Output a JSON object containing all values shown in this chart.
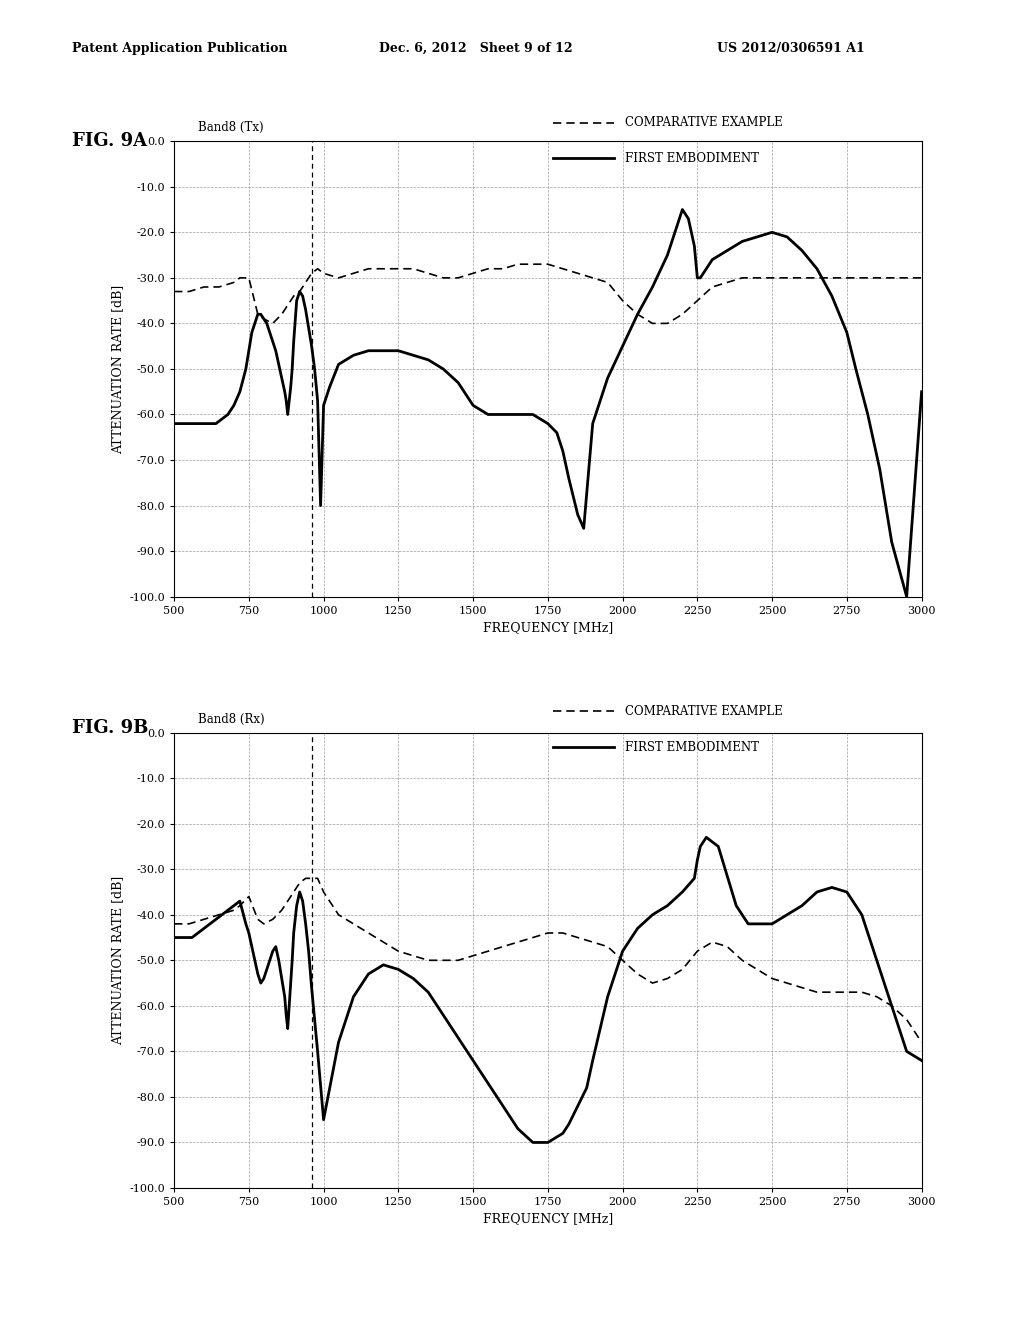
{
  "header_left": "Patent Application Publication",
  "header_mid": "Dec. 6, 2012   Sheet 9 of 12",
  "header_right": "US 2012/0306591 A1",
  "fig_labels": [
    "FIG. 9A",
    "FIG. 9B"
  ],
  "band_labels": [
    "Band8 (Tx)",
    "Band8 (Rx)"
  ],
  "legend_labels": [
    "COMPARATIVE EXAMPLE",
    "FIRST EMBODIMENT"
  ],
  "xlabel": "FREQUENCY [MHz]",
  "ylabel": "ATTENUATION RATE [dB]",
  "xlim": [
    500,
    3000
  ],
  "ylim": [
    -100,
    0
  ],
  "xticks": [
    500,
    750,
    1000,
    1250,
    1500,
    1750,
    2000,
    2250,
    2500,
    2750,
    3000
  ],
  "yticks": [
    0,
    -10,
    -20,
    -30,
    -40,
    -50,
    -60,
    -70,
    -80,
    -90,
    -100
  ],
  "ytick_labels": [
    "0.0",
    "-10.0",
    "-20.0",
    "-30.0",
    "-40.0",
    "-50.0",
    "-60.0",
    "-70.0",
    "-80.0",
    "-90.0",
    "-100.0"
  ],
  "background_color": "#ffffff",
  "line_color_solid": "#000000",
  "line_color_dashed": "#000000",
  "9A_comp_x": [
    500,
    550,
    600,
    650,
    700,
    720,
    750,
    780,
    800,
    830,
    860,
    880,
    900,
    920,
    940,
    960,
    980,
    1000,
    1050,
    1100,
    1150,
    1200,
    1250,
    1300,
    1350,
    1400,
    1450,
    1500,
    1550,
    1600,
    1650,
    1700,
    1750,
    1800,
    1850,
    1900,
    1950,
    2000,
    2050,
    2100,
    2150,
    2200,
    2250,
    2300,
    2350,
    2400,
    2450,
    2500,
    2550,
    2600,
    2650,
    2700,
    2750,
    2800,
    2850,
    2900,
    2950,
    3000
  ],
  "9A_comp_y": [
    -33,
    -33,
    -32,
    -32,
    -31,
    -30,
    -30,
    -38,
    -39,
    -40,
    -38,
    -36,
    -34,
    -33,
    -31,
    -29,
    -28,
    -29,
    -30,
    -29,
    -28,
    -28,
    -28,
    -28,
    -29,
    -30,
    -30,
    -29,
    -28,
    -28,
    -27,
    -27,
    -27,
    -28,
    -29,
    -30,
    -31,
    -35,
    -38,
    -40,
    -40,
    -38,
    -35,
    -32,
    -31,
    -30,
    -30,
    -30,
    -30,
    -30,
    -30,
    -30,
    -30,
    -30,
    -30,
    -30,
    -30,
    -30
  ],
  "9A_first_x": [
    500,
    520,
    540,
    560,
    580,
    600,
    620,
    640,
    660,
    680,
    700,
    720,
    740,
    750,
    760,
    770,
    780,
    790,
    800,
    810,
    820,
    830,
    840,
    850,
    860,
    870,
    875,
    880,
    885,
    890,
    895,
    900,
    910,
    920,
    930,
    940,
    950,
    960,
    970,
    980,
    990,
    1000,
    1020,
    1050,
    1100,
    1150,
    1200,
    1250,
    1300,
    1350,
    1400,
    1450,
    1500,
    1550,
    1600,
    1650,
    1700,
    1750,
    1780,
    1800,
    1820,
    1850,
    1870,
    1900,
    1950,
    2000,
    2050,
    2100,
    2150,
    2200,
    2220,
    2240,
    2250,
    2260,
    2280,
    2300,
    2350,
    2400,
    2450,
    2500,
    2550,
    2600,
    2650,
    2700,
    2750,
    2780,
    2820,
    2860,
    2900,
    2950,
    3000
  ],
  "9A_first_y": [
    -62,
    -62,
    -62,
    -62,
    -62,
    -62,
    -62,
    -62,
    -61,
    -60,
    -58,
    -55,
    -50,
    -46,
    -42,
    -40,
    -38,
    -38,
    -39,
    -40,
    -42,
    -44,
    -46,
    -49,
    -52,
    -55,
    -57,
    -60,
    -57,
    -54,
    -50,
    -44,
    -35,
    -33,
    -34,
    -37,
    -41,
    -45,
    -50,
    -57,
    -80,
    -58,
    -54,
    -49,
    -47,
    -46,
    -46,
    -46,
    -47,
    -48,
    -50,
    -53,
    -58,
    -60,
    -60,
    -60,
    -60,
    -62,
    -64,
    -68,
    -74,
    -82,
    -85,
    -62,
    -52,
    -45,
    -38,
    -32,
    -25,
    -15,
    -17,
    -23,
    -30,
    -30,
    -28,
    -26,
    -24,
    -22,
    -21,
    -20,
    -21,
    -24,
    -28,
    -34,
    -42,
    -50,
    -60,
    -72,
    -88,
    -100,
    -55
  ],
  "9B_comp_x": [
    500,
    550,
    600,
    650,
    700,
    720,
    750,
    780,
    800,
    830,
    860,
    880,
    900,
    920,
    940,
    960,
    980,
    1000,
    1050,
    1100,
    1150,
    1200,
    1250,
    1300,
    1350,
    1400,
    1450,
    1500,
    1550,
    1600,
    1650,
    1700,
    1750,
    1800,
    1850,
    1900,
    1950,
    2000,
    2050,
    2100,
    2150,
    2200,
    2250,
    2300,
    2350,
    2400,
    2450,
    2500,
    2550,
    2600,
    2650,
    2700,
    2750,
    2800,
    2850,
    2900,
    2950,
    3000
  ],
  "9B_comp_y": [
    -42,
    -42,
    -41,
    -40,
    -39,
    -38,
    -36,
    -41,
    -42,
    -41,
    -39,
    -37,
    -35,
    -33,
    -32,
    -32,
    -32,
    -35,
    -40,
    -42,
    -44,
    -46,
    -48,
    -49,
    -50,
    -50,
    -50,
    -49,
    -48,
    -47,
    -46,
    -45,
    -44,
    -44,
    -45,
    -46,
    -47,
    -50,
    -53,
    -55,
    -54,
    -52,
    -48,
    -46,
    -47,
    -50,
    -52,
    -54,
    -55,
    -56,
    -57,
    -57,
    -57,
    -57,
    -58,
    -60,
    -63,
    -68
  ],
  "9B_first_x": [
    500,
    520,
    540,
    560,
    580,
    600,
    620,
    640,
    660,
    680,
    700,
    720,
    740,
    750,
    760,
    770,
    780,
    790,
    800,
    810,
    820,
    830,
    840,
    850,
    860,
    870,
    875,
    880,
    885,
    890,
    895,
    900,
    910,
    920,
    930,
    940,
    950,
    960,
    980,
    1000,
    1050,
    1100,
    1150,
    1200,
    1250,
    1300,
    1350,
    1400,
    1450,
    1500,
    1550,
    1600,
    1650,
    1700,
    1750,
    1800,
    1820,
    1850,
    1880,
    1900,
    1950,
    2000,
    2050,
    2100,
    2150,
    2200,
    2240,
    2250,
    2260,
    2280,
    2320,
    2380,
    2420,
    2480,
    2500,
    2550,
    2600,
    2650,
    2700,
    2750,
    2800,
    2850,
    2900,
    2950,
    3000
  ],
  "9B_first_y": [
    -45,
    -45,
    -45,
    -45,
    -44,
    -43,
    -42,
    -41,
    -40,
    -39,
    -38,
    -37,
    -42,
    -44,
    -47,
    -50,
    -53,
    -55,
    -54,
    -52,
    -50,
    -48,
    -47,
    -50,
    -54,
    -58,
    -62,
    -65,
    -60,
    -55,
    -50,
    -44,
    -38,
    -35,
    -37,
    -42,
    -48,
    -56,
    -70,
    -85,
    -68,
    -58,
    -53,
    -51,
    -52,
    -54,
    -57,
    -62,
    -67,
    -72,
    -77,
    -82,
    -87,
    -90,
    -90,
    -88,
    -86,
    -82,
    -78,
    -72,
    -58,
    -48,
    -43,
    -40,
    -38,
    -35,
    -32,
    -28,
    -25,
    -23,
    -25,
    -38,
    -42,
    -42,
    -42,
    -40,
    -38,
    -35,
    -34,
    -35,
    -40,
    -50,
    -60,
    -70,
    -72
  ]
}
